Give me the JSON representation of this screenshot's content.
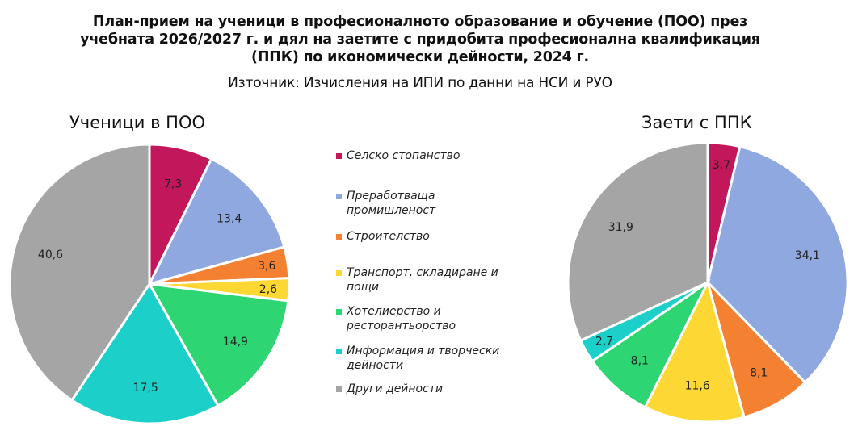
{
  "title": {
    "line1": "План-прием на ученици в професионалното образование и обучение (ПОО) през",
    "line2": "учебната 2026/2027 г. и дял на заетите с придобита професионална квалификация",
    "line3": "(ППК) по икономически дейности, 2024 г."
  },
  "source": "Източник: Изчисления на ИПИ по данни на НСИ и РУО",
  "legend": [
    {
      "label": "Селско стопанство",
      "color": "#c2185b"
    },
    {
      "label": "Преработваща промишленост",
      "color": "#8fa8e0"
    },
    {
      "label": "Строителство",
      "color": "#f48131"
    },
    {
      "label": "Транспорт, складиране и пощи",
      "color": "#fdd835"
    },
    {
      "label": "Хотелиерство и ресторантьорство",
      "color": "#2ed573"
    },
    {
      "label": "Информация и творчески дейности",
      "color": "#1ccfc9"
    },
    {
      "label": "Други дейности",
      "color": "#a5a5a5"
    }
  ],
  "chart_data": [
    {
      "type": "pie",
      "title": "Ученици в ПОО",
      "categories": [
        "Селско стопанство",
        "Преработваща промишленост",
        "Строителство",
        "Транспорт, складиране и пощи",
        "Хотелиерство и ресторантьорство",
        "Информация и творчески дейности",
        "Други дейности"
      ],
      "values": [
        7.3,
        13.4,
        3.6,
        2.6,
        14.9,
        17.5,
        40.6
      ],
      "labels": [
        "7,3",
        "13,4",
        "3,6",
        "2,6",
        "14,9",
        "17,5",
        "40,6"
      ]
    },
    {
      "type": "pie",
      "title": "Заети с ППК",
      "categories": [
        "Селско стопанство",
        "Преработваща промишленост",
        "Строителство",
        "Транспорт, складиране и пощи",
        "Хотелиерство и ресторантьорство",
        "Информация и творчески дейности",
        "Други дейности"
      ],
      "values": [
        3.7,
        34.1,
        8.1,
        11.6,
        8.1,
        2.7,
        31.9
      ],
      "labels": [
        "3,7",
        "34,1",
        "8,1",
        "11,6",
        "8,1",
        "2,7",
        "31,9"
      ]
    }
  ]
}
